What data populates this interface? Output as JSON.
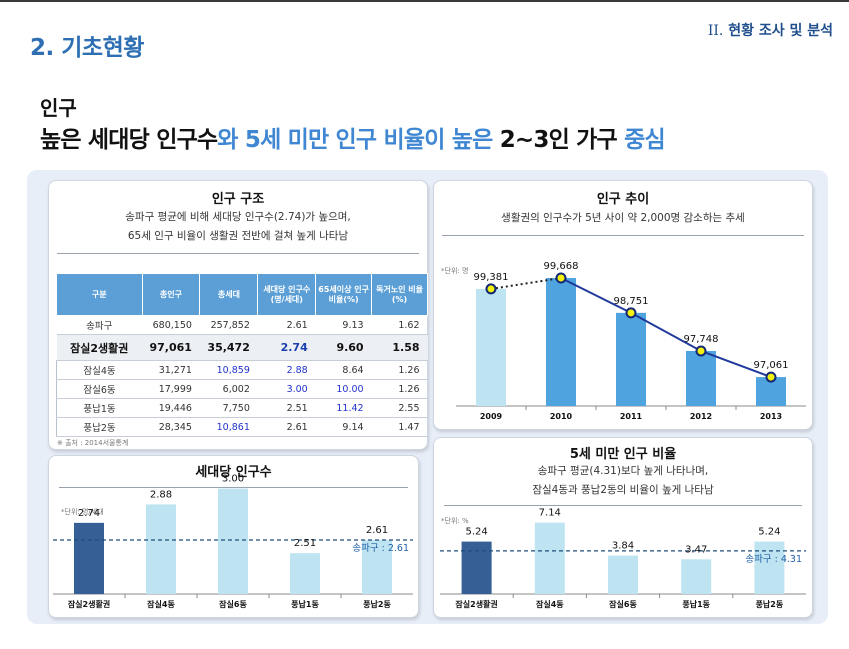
{
  "header": {
    "section_title": "2. 기초현황",
    "chapter_roman": "II.",
    "chapter_text": "현황 조사 및 분석"
  },
  "subhead": "인구",
  "headline": {
    "p1": "높은 세대당 인구수",
    "p2": "와 5세 미만 인구 ",
    "p3": "비율이 높은",
    "p4": " 2~3인 가구 ",
    "p5": "중심"
  },
  "colors": {
    "accent_blue": "#3f87d3",
    "bar_dark": "#365f96",
    "bar_light": "#bde4f0",
    "bar_mid": "#4fa3de",
    "line": "#1f3a9c",
    "marker": "#f2f20a",
    "avg_line": "#1f4e79"
  },
  "structure_card": {
    "title": "인구 구조",
    "desc1": "송파구 평균에 비해 세대당 인구수(2.74)가 높으며,",
    "desc2": "65세 인구 비율이 생활권 전반에 걸쳐 높게 나타남",
    "table": {
      "headers": [
        "구분",
        "총인구",
        "총세대",
        "세대당 인구수 (명/세대)",
        "65세이상 인구비율(%)",
        "독거노인 비율(%)"
      ],
      "rows": [
        {
          "name": "송파구",
          "pop": "680,150",
          "hh": "257,852",
          "per": "2.61",
          "elder": "9.13",
          "alone": "1.62"
        },
        {
          "name": "잠실2생활권",
          "pop": "97,061",
          "hh": "35,472",
          "per": "2.74",
          "elder": "9.60",
          "alone": "1.58"
        },
        {
          "name": "잠실4동",
          "pop": "31,271",
          "hh": "10,859",
          "per": "2.88",
          "elder": "8.64",
          "alone": "1.26"
        },
        {
          "name": "잠실6동",
          "pop": "17,999",
          "hh": "6,002",
          "per": "3.00",
          "elder": "10.00",
          "alone": "1.26"
        },
        {
          "name": "풍납1동",
          "pop": "19,446",
          "hh": "7,750",
          "per": "2.51",
          "elder": "11.42",
          "alone": "2.55"
        },
        {
          "name": "풍납2동",
          "pop": "28,345",
          "hh": "10,861",
          "per": "2.61",
          "elder": "9.14",
          "alone": "1.47"
        }
      ]
    },
    "source": "※ 출처 : 2014서울통계"
  },
  "chart_data": [
    {
      "id": "trend",
      "type": "bar",
      "title": "인구 추이",
      "subtitle": "생활권의 인구수가 5년 사이 약 2,000명 감소하는 추세",
      "unit": "*단위: 명",
      "categories": [
        "2009",
        "2010",
        "2011",
        "2012",
        "2013"
      ],
      "values": [
        99381,
        99668,
        98751,
        97748,
        97061
      ],
      "labels": [
        "99,381",
        "99,668",
        "98,751",
        "97,748",
        "97,061"
      ],
      "overlay": "line",
      "ylim": [
        96300,
        99800
      ]
    },
    {
      "id": "household",
      "type": "bar",
      "title": "세대당 인구수",
      "unit": "*단위: 명/세대",
      "categories": [
        "잠실2생활권",
        "잠실4동",
        "잠실6동",
        "풍납1동",
        "풍납2동"
      ],
      "values": [
        2.74,
        2.88,
        3.0,
        2.51,
        2.61
      ],
      "labels": [
        "2.74",
        "2.88",
        "3.00",
        "2.51",
        "2.61"
      ],
      "ylim": [
        2.2,
        3.05
      ],
      "reference": {
        "value": 2.61,
        "label": "송파구 : 2.61"
      }
    },
    {
      "id": "under5",
      "type": "bar",
      "title": "5세 미만 인구 비율",
      "subtitle1": "송파구 평균(4.31)보다  높게 나타나며,",
      "subtitle2": "잠실4동과 풍납2동의 비율이 높게 나타남",
      "unit": "*단위: %",
      "categories": [
        "잠실2생활권",
        "잠실4동",
        "잠실6동",
        "풍납1동",
        "풍납2동"
      ],
      "values": [
        5.24,
        7.14,
        3.84,
        3.47,
        5.24
      ],
      "labels": [
        "5.24",
        "7.14",
        "3.84",
        "3.47",
        "5.24"
      ],
      "ylim": [
        0,
        7.6
      ],
      "reference": {
        "value": 4.31,
        "label": "송파구 : 4.31"
      }
    }
  ]
}
